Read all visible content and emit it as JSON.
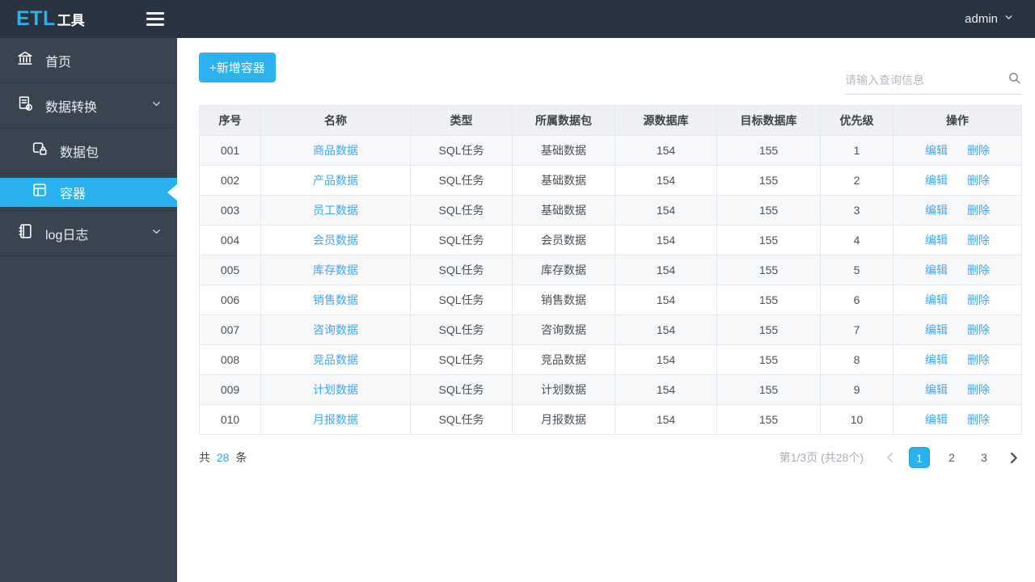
{
  "topbar": {
    "logo_primary": "ETL",
    "logo_secondary": "工具",
    "user": "admin"
  },
  "sidebar": {
    "items": [
      {
        "label": "首页",
        "icon": "bank-icon"
      },
      {
        "label": "数据转换",
        "icon": "data-transform-icon",
        "expandable": true
      },
      {
        "label": "数据包",
        "icon": "package-lock-icon",
        "sub": true
      },
      {
        "label": "容器",
        "icon": "container-icon",
        "sub": true,
        "active": true
      },
      {
        "label": "log日志",
        "icon": "log-icon",
        "expandable": true
      }
    ]
  },
  "toolbar": {
    "add_button_label": "+新增容器",
    "search_placeholder": "请输入查询信息"
  },
  "table": {
    "headers": [
      "序号",
      "名称",
      "类型",
      "所属数据包",
      "源数据库",
      "目标数据库",
      "优先级",
      "操作"
    ],
    "action_edit": "编辑",
    "action_delete": "删除",
    "rows": [
      {
        "seq": "001",
        "name": "商品数据",
        "type": "SQL任务",
        "package": "基础数据",
        "source": "154",
        "target": "155",
        "priority": "1"
      },
      {
        "seq": "002",
        "name": "产品数据",
        "type": "SQL任务",
        "package": "基础数据",
        "source": "154",
        "target": "155",
        "priority": "2"
      },
      {
        "seq": "003",
        "name": "员工数据",
        "type": "SQL任务",
        "package": "基础数据",
        "source": "154",
        "target": "155",
        "priority": "3"
      },
      {
        "seq": "004",
        "name": "会员数据",
        "type": "SQL任务",
        "package": "会员数据",
        "source": "154",
        "target": "155",
        "priority": "4"
      },
      {
        "seq": "005",
        "name": "库存数据",
        "type": "SQL任务",
        "package": "库存数据",
        "source": "154",
        "target": "155",
        "priority": "5"
      },
      {
        "seq": "006",
        "name": "销售数据",
        "type": "SQL任务",
        "package": "销售数据",
        "source": "154",
        "target": "155",
        "priority": "6"
      },
      {
        "seq": "007",
        "name": "咨询数据",
        "type": "SQL任务",
        "package": "咨询数据",
        "source": "154",
        "target": "155",
        "priority": "7"
      },
      {
        "seq": "008",
        "name": "竞品数据",
        "type": "SQL任务",
        "package": "竞品数据",
        "source": "154",
        "target": "155",
        "priority": "8"
      },
      {
        "seq": "009",
        "name": "计划数据",
        "type": "SQL任务",
        "package": "计划数据",
        "source": "154",
        "target": "155",
        "priority": "9"
      },
      {
        "seq": "010",
        "name": "月报数据",
        "type": "SQL任务",
        "package": "月报数据",
        "source": "154",
        "target": "155",
        "priority": "10"
      }
    ]
  },
  "footer": {
    "total_prefix": "共",
    "total_count": "28",
    "total_suffix": "条",
    "page_info": "第1/3页 (共28个)",
    "pages": [
      "1",
      "2",
      "3"
    ],
    "active_page": "1"
  },
  "colors": {
    "accent": "#29b2ee",
    "link": "#3da8f1",
    "topbar_bg": "#2a3440",
    "sidebar_bg": "#3a4450",
    "header_row_bg": "#eef0f3",
    "stripe_row_bg": "#f7f8fa"
  }
}
